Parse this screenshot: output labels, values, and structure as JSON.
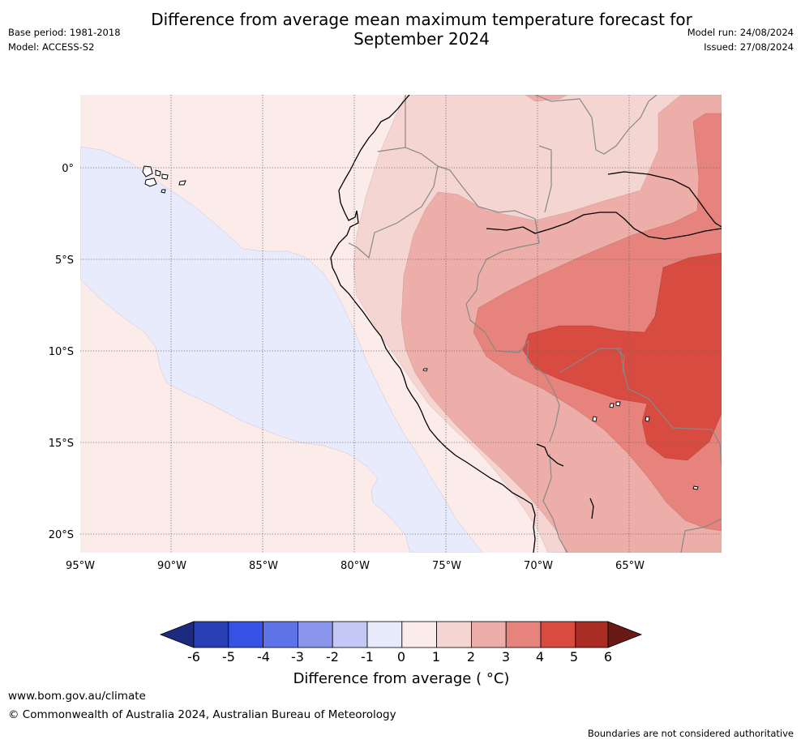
{
  "header": {
    "title": "Difference from average mean maximum temperature forecast for\nSeptember 2024",
    "base_period": "Base period: 1981-2018",
    "model": "Model: ACCESS-S2",
    "model_run": "Model run: 24/08/2024",
    "issued": "Issued: 27/08/2024"
  },
  "map": {
    "lon_labels": [
      "95°W",
      "90°W",
      "85°W",
      "80°W",
      "75°W",
      "70°W",
      "65°W"
    ],
    "lat_labels": [
      "0°",
      "5°S",
      "10°S",
      "15°S",
      "20°S"
    ],
    "extent": {
      "lon_min": -95,
      "lon_max": -60,
      "lat_min": -21,
      "lat_max": 4
    },
    "graticule": "dotted",
    "colors": {
      "range_-2_to_-1": "#c3c8f4",
      "range_-1_to_0": "#e8ebfb",
      "range_0_to_1": "#fbebe9",
      "range_1_to_2": "#f5d5d2",
      "range_2_to_3": "#edaeaa",
      "range_3_to_4": "#e5837c",
      "range_4_to_5": "#d84b40",
      "coastline": "#000000",
      "borders": "#888888"
    }
  },
  "colorbar": {
    "ticks": [
      "-6",
      "-5",
      "-4",
      "-3",
      "-2",
      "-1",
      "0",
      "1",
      "2",
      "3",
      "4",
      "5",
      "6"
    ],
    "colors": [
      "#1c2a80",
      "#273eb4",
      "#3552e4",
      "#5f73e8",
      "#8a96ec",
      "#c3c8f4",
      "#e8ebfb",
      "#fbebe9",
      "#f5d5d2",
      "#edaeaa",
      "#e5837c",
      "#d84b40",
      "#a92d23",
      "#6a1a15"
    ],
    "label": "Difference from average ( °C)"
  },
  "footer": {
    "url": "www.bom.gov.au/climate",
    "copyright": "© Commonwealth of Australia 2024, Australian Bureau of Meteorology",
    "note": "Boundaries are not considered authoritative"
  }
}
